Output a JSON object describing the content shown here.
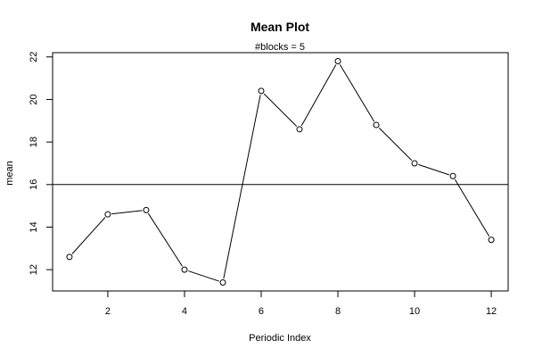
{
  "chart_data": {
    "type": "line",
    "title": "Mean Plot",
    "subtitle": "#blocks =  5",
    "xlabel": "Periodic Index",
    "ylabel": "mean",
    "x": [
      1,
      2,
      3,
      4,
      5,
      6,
      7,
      8,
      9,
      10,
      11,
      12
    ],
    "values": [
      12.6,
      14.6,
      14.8,
      12.0,
      11.4,
      20.4,
      18.6,
      21.8,
      18.8,
      17.0,
      16.4,
      13.4
    ],
    "reference_line": 16,
    "xlim": [
      0.56,
      12.44
    ],
    "ylim": [
      11.0,
      22.2
    ],
    "x_ticks": [
      2,
      4,
      6,
      8,
      10,
      12
    ],
    "y_ticks": [
      12,
      14,
      16,
      18,
      20,
      22
    ],
    "grid": false,
    "marker": "open-circle"
  }
}
